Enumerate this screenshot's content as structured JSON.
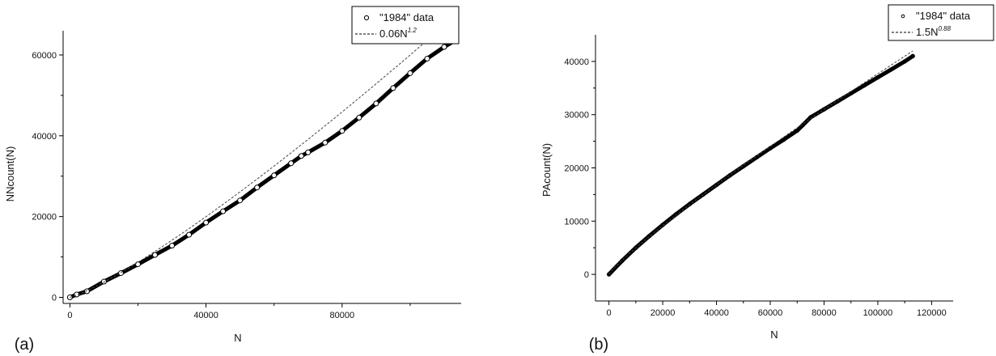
{
  "chart_data": [
    {
      "type": "scatter",
      "panel_label": "(a)",
      "xlabel": "N",
      "ylabel": "NNcount(N)",
      "xlim": [
        -2000,
        115000
      ],
      "ylim": [
        -1500,
        66000
      ],
      "x_ticks": [
        0,
        40000,
        80000
      ],
      "x_tick_labels": [
        "0",
        "40000",
        "80000"
      ],
      "y_ticks": [
        0,
        20000,
        40000,
        60000
      ],
      "y_tick_labels": [
        "0",
        "20000",
        "40000",
        "60000"
      ],
      "legend_placement": "top-right",
      "legend": [
        {
          "marker": "open-circle",
          "text": "\"1984\" data"
        },
        {
          "marker": "dashed-line",
          "text": "0.06N",
          "sup": "1.2"
        }
      ],
      "series": [
        {
          "kind": "data",
          "x": [
            0,
            2000,
            5000,
            10000,
            15000,
            20000,
            25000,
            30000,
            35000,
            40000,
            45000,
            50000,
            55000,
            60000,
            65000,
            68000,
            70000,
            75000,
            80000,
            85000,
            90000,
            95000,
            100000,
            105000,
            110000,
            113000
          ],
          "y": [
            0,
            700,
            1500,
            3900,
            6000,
            8200,
            10500,
            12800,
            15500,
            18500,
            21300,
            24000,
            27200,
            30200,
            33200,
            35000,
            35900,
            38300,
            41200,
            44500,
            48000,
            51800,
            55500,
            59100,
            62000,
            63500
          ]
        },
        {
          "kind": "fit",
          "coef": 0.06,
          "exponent": 1.2,
          "x_range": [
            0,
            113000
          ]
        }
      ]
    },
    {
      "type": "scatter",
      "panel_label": "(b)",
      "xlabel": "N",
      "ylabel": "PAcount(N)",
      "xlim": [
        -5000,
        128000
      ],
      "ylim": [
        -5000,
        45000
      ],
      "x_ticks": [
        0,
        20000,
        40000,
        60000,
        80000,
        100000,
        120000
      ],
      "x_tick_labels": [
        "0",
        "20000",
        "40000",
        "60000",
        "80000",
        "100000",
        "120000"
      ],
      "y_ticks": [
        0,
        10000,
        20000,
        30000,
        40000
      ],
      "y_tick_labels": [
        "0",
        "10000",
        "20000",
        "30000",
        "40000"
      ],
      "legend_placement": "top-right",
      "legend": [
        {
          "marker": "small-circle",
          "text": "\"1984\" data"
        },
        {
          "marker": "dashed-line",
          "text": "1.5N",
          "sup": "0.88"
        }
      ],
      "series": [
        {
          "kind": "data",
          "x": [
            0,
            5000,
            10000,
            15000,
            20000,
            25000,
            30000,
            35000,
            40000,
            45000,
            50000,
            55000,
            60000,
            65000,
            70000,
            72000,
            75000,
            80000,
            85000,
            90000,
            95000,
            100000,
            105000,
            110000,
            113000
          ],
          "y": [
            0,
            2600,
            5000,
            7200,
            9300,
            11300,
            13200,
            15000,
            16800,
            18600,
            20300,
            22000,
            23700,
            25300,
            27000,
            28000,
            29500,
            31000,
            32500,
            34000,
            35500,
            37000,
            38500,
            40000,
            41000
          ]
        },
        {
          "kind": "fit",
          "coef": 1.5,
          "exponent": 0.88,
          "x_range": [
            0,
            113000
          ]
        }
      ]
    }
  ]
}
